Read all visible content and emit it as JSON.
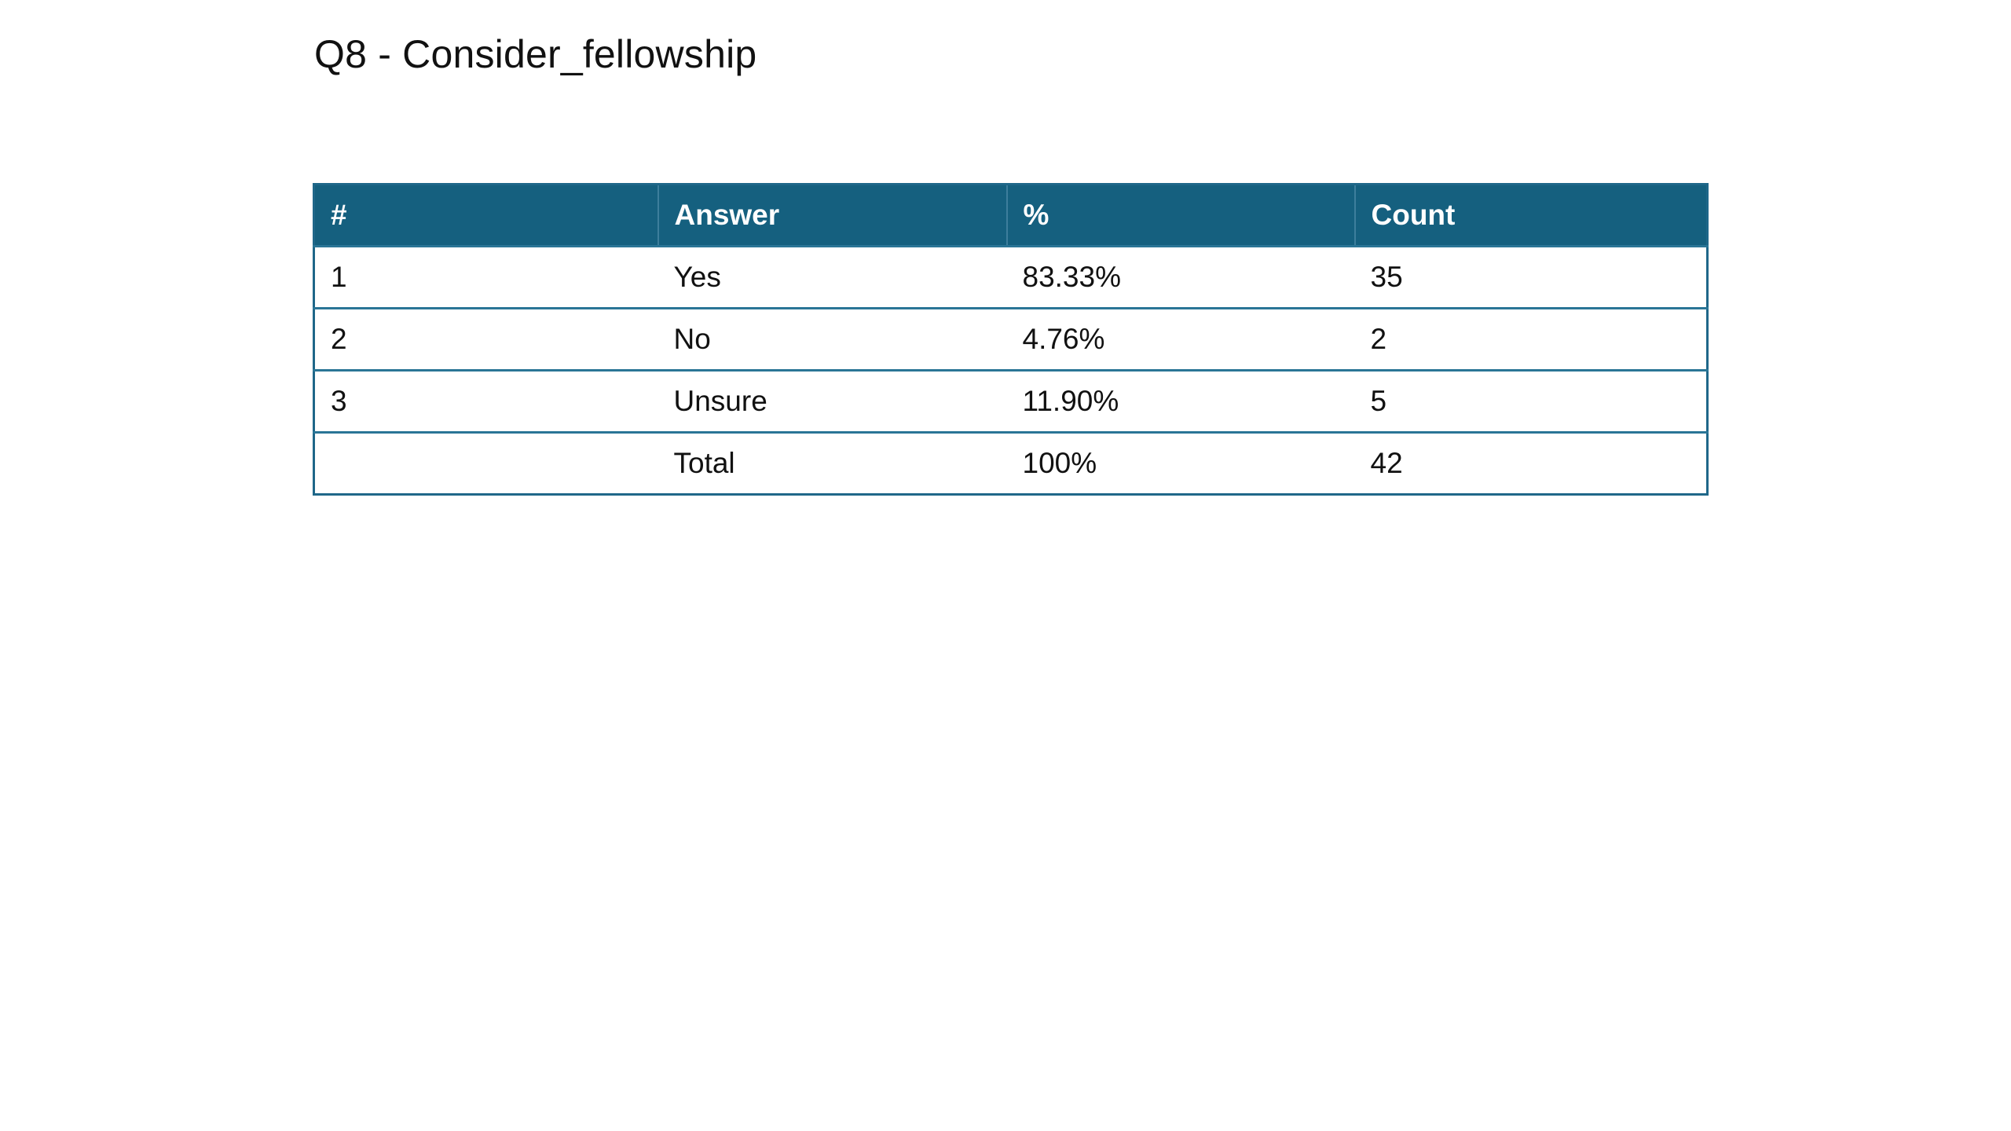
{
  "title": "Q8 - Consider_fellowship",
  "table": {
    "headers": [
      "#",
      "Answer",
      "%",
      "Count"
    ],
    "rows": [
      [
        "1",
        "Yes",
        "83.33%",
        "35"
      ],
      [
        "2",
        "No",
        "4.76%",
        "2"
      ],
      [
        "3",
        "Unsure",
        "11.90%",
        "5"
      ],
      [
        "",
        "Total",
        "100%",
        "42"
      ]
    ]
  },
  "colors": {
    "header_background": "#15607f",
    "border": "#1f6789",
    "header_text": "#ffffff"
  }
}
